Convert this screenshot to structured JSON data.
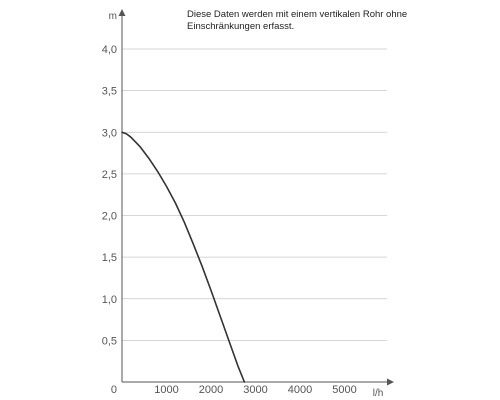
{
  "chart_data": {
    "type": "line",
    "xlabel": "l/h",
    "ylabel": "m",
    "annotation": [
      "Diese Daten werden mit einem vertikalen Rohr ohne",
      "Einschränkungen erfasst."
    ],
    "xlim": [
      0,
      6000
    ],
    "ylim": [
      0,
      4.3
    ],
    "x_ticks": [
      "0",
      "1000",
      "2000",
      "3000",
      "4000",
      "5000"
    ],
    "y_ticks": [
      "0,5",
      "1,0",
      "1,5",
      "2,0",
      "2,5",
      "3,0",
      "3,5",
      "4,0"
    ],
    "grid": "horizontal",
    "series": [
      {
        "color": "#333333",
        "x": [
          0,
          100,
          200,
          400,
          600,
          800,
          1000,
          1200,
          1400,
          1600,
          1800,
          2000,
          2200,
          2400,
          2600,
          2750
        ],
        "y": [
          3.0,
          2.98,
          2.94,
          2.83,
          2.69,
          2.53,
          2.35,
          2.15,
          1.92,
          1.66,
          1.39,
          1.1,
          0.8,
          0.5,
          0.2,
          0.0
        ]
      }
    ]
  }
}
